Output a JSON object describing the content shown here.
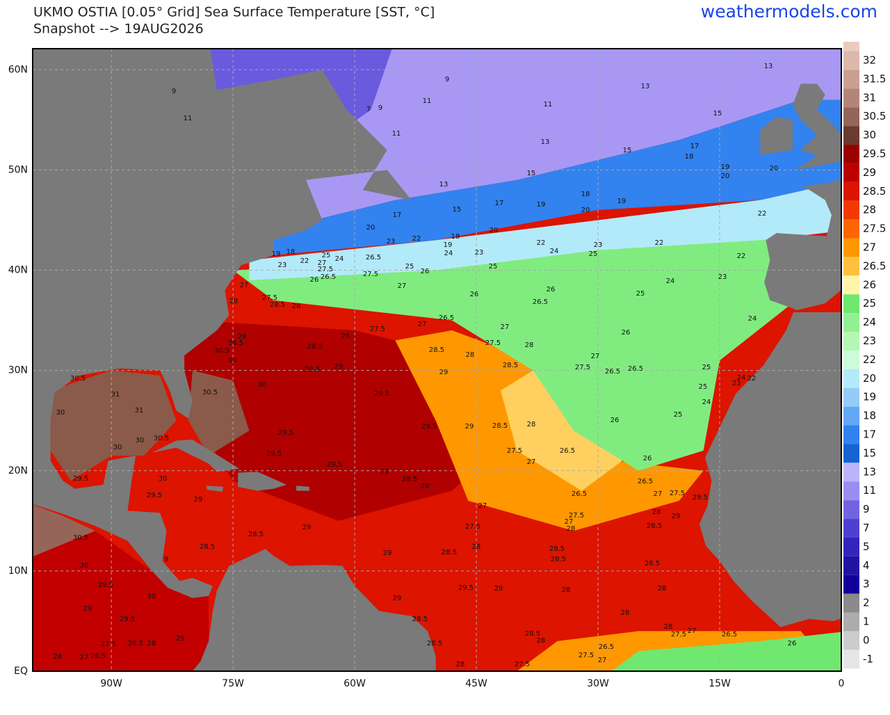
{
  "header": {
    "title": "UKMO OSTIA [0.05° Grid] Sea Surface Temperature [SST, °C]",
    "subtitle": "Snapshot --> 19AUG2026",
    "site": "weathermodels.com"
  },
  "map": {
    "xlim": [
      -99.7,
      0
    ],
    "ylim": [
      0,
      62.1
    ],
    "xticks": [
      {
        "value": -90,
        "label": "90W"
      },
      {
        "value": -75,
        "label": "75W"
      },
      {
        "value": -60,
        "label": "60W"
      },
      {
        "value": -45,
        "label": "45W"
      },
      {
        "value": -30,
        "label": "30W"
      },
      {
        "value": -15,
        "label": "15W"
      },
      0
    ],
    "yticks": [
      {
        "value": 60,
        "label": "60N"
      },
      {
        "value": 50,
        "label": "50N"
      },
      {
        "value": 40,
        "label": "40N"
      },
      {
        "value": 30,
        "label": "30N"
      },
      {
        "value": 20,
        "label": "20N"
      },
      {
        "value": 10,
        "label": "10N"
      },
      {
        "value": 0,
        "label": "EQ"
      }
    ],
    "grid": true,
    "contour_labels": [
      9,
      11,
      7,
      9,
      9,
      11,
      11,
      11,
      13,
      13,
      15,
      13,
      13,
      15,
      17,
      18,
      19,
      20,
      20,
      15,
      17,
      19,
      18,
      20,
      19,
      15,
      17,
      20,
      22,
      23,
      20,
      19,
      18,
      22,
      24,
      23,
      25,
      22,
      22,
      22,
      24,
      23,
      24,
      25,
      23,
      24,
      25,
      25,
      26,
      26.5,
      27.5,
      18,
      19,
      23,
      22,
      25,
      24,
      27,
      27.5,
      26.5,
      26,
      27,
      26,
      26,
      26.5,
      26.5,
      27,
      27.5,
      27,
      28,
      27,
      28,
      27.5,
      28.5,
      28,
      29,
      28.5,
      30.5,
      30,
      28.5,
      29.5,
      29,
      28.5,
      28,
      27.5,
      28,
      28.5,
      29,
      27,
      27.5,
      26.5,
      26.5,
      26,
      29.5,
      30,
      30.5,
      31,
      31,
      30.5,
      30,
      29.5,
      29,
      28.5,
      28,
      26,
      25,
      25,
      25,
      24,
      23,
      24,
      22,
      29.5,
      29.5,
      30.5,
      30,
      30,
      27.5,
      27,
      26.5,
      26,
      29.5,
      29,
      28.5,
      28,
      26.5,
      26.5,
      27,
      27.5,
      29.5,
      30,
      29.5,
      29.5,
      29,
      27,
      27.5,
      27,
      28,
      29,
      28.5,
      28,
      27.5,
      29,
      28.5,
      28.5,
      28,
      28.5,
      28.5,
      28.5,
      29,
      9,
      30,
      30.5,
      28.5,
      29.5,
      30,
      29.5,
      29,
      28,
      28,
      29,
      29,
      29.5,
      28.5,
      28,
      28,
      27.5,
      27,
      26.5,
      26,
      28.5,
      28,
      28.5,
      27.5,
      28.5,
      28,
      29,
      26.5,
      27.5,
      27,
      26.5,
      27,
      28,
      28,
      27.5
    ]
  },
  "colorbar": {
    "levels": [
      32,
      31.5,
      31,
      30.5,
      30,
      29.5,
      29,
      28.5,
      28,
      27.5,
      27,
      26.5,
      26,
      25,
      24,
      23,
      22,
      20,
      19,
      18,
      17,
      15,
      13,
      11,
      9,
      7,
      5,
      4,
      3,
      2,
      1,
      0,
      -1
    ],
    "colors": [
      "#dcb8aa",
      "#c9a090",
      "#b3857a",
      "#96655a",
      "#6b3a30",
      "#9a0000",
      "#bc0000",
      "#dc1400",
      "#f23a00",
      "#ff6400",
      "#ff9800",
      "#ffc040",
      "#fff4a8",
      "#6ee86e",
      "#92f092",
      "#b4f6b4",
      "#ccfada",
      "#b2eafa",
      "#94ccf8",
      "#62a8f6",
      "#3282f0",
      "#1464d2",
      "#bcb4fa",
      "#9a8cf2",
      "#7264e0",
      "#5040d0",
      "#3424bc",
      "#2212a4",
      "#12009a",
      "#8a8a8a",
      "#acacac",
      "#cccccc",
      "#e6e6e6"
    ]
  }
}
